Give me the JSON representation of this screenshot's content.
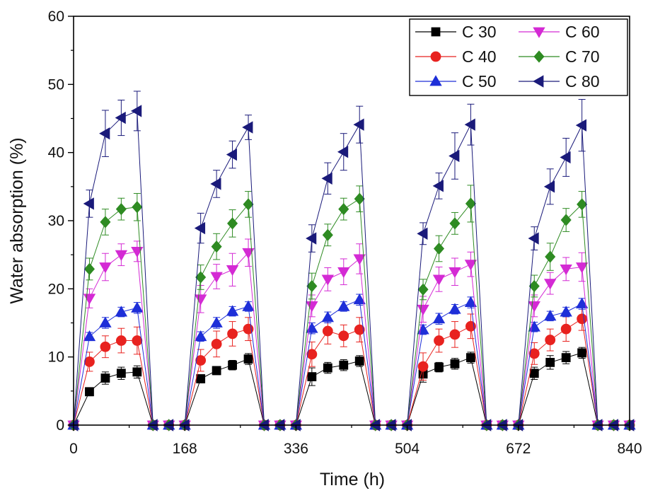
{
  "chart_data": {
    "type": "line",
    "xlabel": "Time (h)",
    "ylabel": "Water absorption (%)",
    "xlim": [
      0,
      840
    ],
    "ylim": [
      0,
      60
    ],
    "x_ticks": [
      0,
      168,
      336,
      504,
      672,
      840
    ],
    "y_ticks": [
      0,
      10,
      20,
      30,
      40,
      50,
      60
    ],
    "legend_position": "top-right",
    "grid": false,
    "x": [
      0,
      24,
      48,
      72,
      96,
      120,
      144,
      168,
      192,
      216,
      240,
      264,
      288,
      312,
      336,
      360,
      384,
      408,
      432,
      456,
      480,
      504,
      528,
      552,
      576,
      600,
      624,
      648,
      672,
      696,
      720,
      744,
      768,
      792,
      816,
      840
    ],
    "series": [
      {
        "name": "C 30",
        "color": "#000000",
        "marker": "square",
        "values": [
          0,
          4.9,
          6.9,
          7.6,
          7.8,
          0,
          0,
          0,
          6.8,
          8.0,
          8.8,
          9.7,
          0,
          0,
          0,
          7.1,
          8.4,
          8.8,
          9.4,
          0,
          0,
          0,
          7.5,
          8.5,
          9.0,
          9.9,
          0,
          0,
          0,
          7.6,
          9.2,
          9.9,
          10.6,
          0,
          0,
          0
        ],
        "errors": [
          0,
          0.6,
          0.9,
          0.9,
          0.9,
          0,
          0,
          0,
          0.6,
          0.6,
          0.7,
          0.8,
          0,
          0,
          0,
          1.3,
          0.8,
          0.8,
          0.8,
          0,
          0,
          0,
          1.2,
          0.7,
          0.8,
          0.8,
          0,
          0,
          0,
          0.9,
          1.0,
          0.9,
          0.8,
          0,
          0,
          0
        ]
      },
      {
        "name": "C 40",
        "color": "#e8221f",
        "marker": "circle",
        "values": [
          0,
          9.3,
          11.5,
          12.4,
          12.4,
          0,
          0,
          0,
          9.5,
          11.9,
          13.4,
          14.1,
          0,
          0,
          0,
          10.4,
          13.8,
          13.1,
          14.0,
          0,
          0,
          0,
          8.6,
          12.4,
          13.3,
          14.5,
          0,
          0,
          0,
          10.5,
          12.5,
          14.1,
          15.6,
          0,
          0,
          0
        ],
        "errors": [
          0,
          1.4,
          1.6,
          1.8,
          2.0,
          0,
          0,
          0,
          1.6,
          1.9,
          1.8,
          1.7,
          0,
          0,
          0,
          1.8,
          1.9,
          1.6,
          1.8,
          0,
          0,
          0,
          2.0,
          1.7,
          1.9,
          1.8,
          0,
          0,
          0,
          1.6,
          1.6,
          1.8,
          1.7,
          0,
          0,
          0
        ]
      },
      {
        "name": "C 50",
        "color": "#1e2fd8",
        "marker": "triangle-up",
        "values": [
          0,
          13.0,
          15.0,
          16.6,
          17.2,
          0,
          0,
          0,
          13.0,
          15.0,
          16.7,
          17.4,
          0,
          0,
          0,
          14.2,
          15.8,
          17.4,
          18.4,
          0,
          0,
          0,
          14.0,
          15.6,
          17.0,
          18.0,
          0,
          0,
          0,
          14.4,
          16.0,
          16.6,
          17.8,
          0,
          0,
          0
        ],
        "errors": [
          0,
          0.6,
          0.8,
          0.7,
          0.8,
          0,
          0,
          0,
          0.7,
          0.8,
          0.7,
          0.7,
          0,
          0,
          0,
          0.8,
          0.8,
          0.7,
          0.8,
          0,
          0,
          0,
          0.7,
          0.8,
          0.7,
          0.8,
          0,
          0,
          0,
          0.7,
          0.7,
          0.7,
          0.8,
          0,
          0,
          0
        ]
      },
      {
        "name": "C 60",
        "color": "#d42ad4",
        "marker": "triangle-down",
        "values": [
          0,
          18.6,
          23.2,
          25.0,
          25.5,
          0,
          0,
          0,
          18.5,
          21.8,
          22.8,
          25.3,
          0,
          0,
          0,
          17.5,
          21.4,
          22.5,
          24.4,
          0,
          0,
          0,
          17.0,
          21.4,
          22.5,
          23.6,
          0,
          0,
          0,
          17.5,
          20.8,
          22.9,
          23.2,
          0,
          0,
          0
        ],
        "errors": [
          0,
          1.4,
          2.0,
          1.6,
          1.5,
          0,
          0,
          0,
          2.0,
          1.8,
          2.4,
          2.0,
          0,
          0,
          0,
          1.6,
          1.7,
          1.9,
          2.2,
          0,
          0,
          0,
          1.9,
          1.8,
          2.0,
          1.8,
          0,
          0,
          0,
          1.6,
          1.6,
          1.7,
          2.1,
          0,
          0,
          0
        ]
      },
      {
        "name": "C 70",
        "color": "#2e8b22",
        "marker": "diamond",
        "values": [
          0,
          22.9,
          29.8,
          31.7,
          32.0,
          0,
          0,
          0,
          21.7,
          26.2,
          29.6,
          32.4,
          0,
          0,
          0,
          20.4,
          27.9,
          31.7,
          33.2,
          0,
          0,
          0,
          19.9,
          25.9,
          29.6,
          32.5,
          0,
          0,
          0,
          20.4,
          24.7,
          30.1,
          32.4,
          0,
          0,
          0
        ],
        "errors": [
          0,
          1.6,
          1.9,
          1.6,
          2.0,
          0,
          0,
          0,
          1.8,
          1.9,
          2.0,
          1.9,
          0,
          0,
          0,
          1.9,
          1.6,
          1.6,
          1.9,
          0,
          0,
          0,
          1.5,
          1.9,
          1.6,
          2.7,
          0,
          0,
          0,
          1.6,
          2.0,
          1.7,
          1.9,
          0,
          0,
          0
        ]
      },
      {
        "name": "C 80",
        "color": "#1a1a7a",
        "marker": "triangle-left",
        "values": [
          0,
          32.5,
          42.8,
          45.1,
          46.1,
          0,
          0,
          0,
          28.9,
          35.4,
          39.7,
          43.7,
          0,
          0,
          0,
          27.4,
          36.2,
          40.1,
          44.1,
          0,
          0,
          0,
          28.1,
          35.1,
          39.5,
          44.1,
          0,
          0,
          0,
          27.4,
          35.0,
          39.3,
          44.0,
          0,
          0,
          0
        ],
        "errors": [
          0,
          2.0,
          3.4,
          2.6,
          2.9,
          0,
          0,
          0,
          2.2,
          2.0,
          2.0,
          1.8,
          0,
          0,
          0,
          2.0,
          2.3,
          2.7,
          2.7,
          0,
          0,
          0,
          1.6,
          1.9,
          3.4,
          3.0,
          0,
          0,
          0,
          1.7,
          2.6,
          2.8,
          3.8,
          0,
          0,
          0
        ]
      }
    ]
  }
}
